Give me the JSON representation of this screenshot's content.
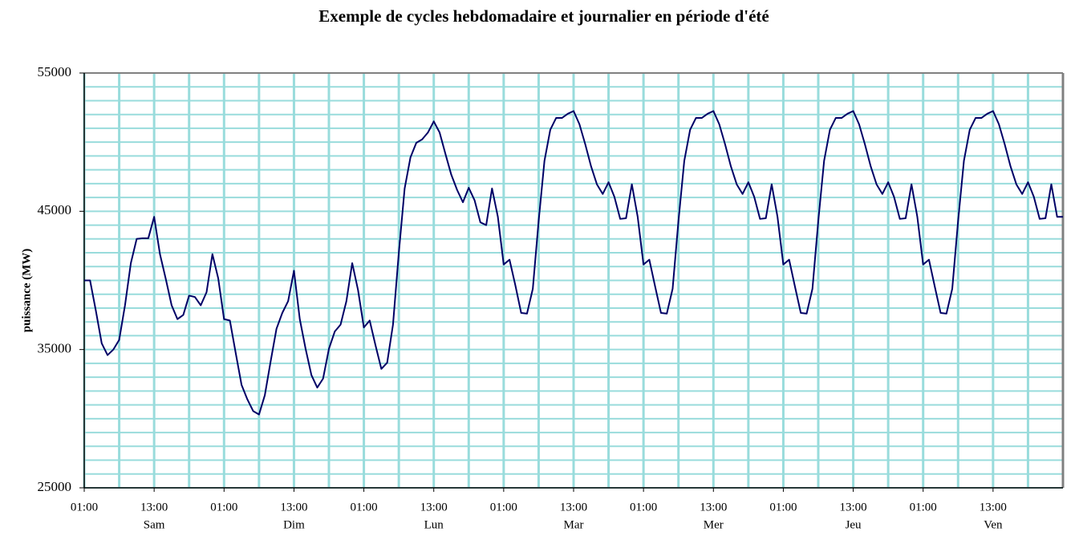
{
  "chart_data": {
    "type": "line",
    "title": "Exemple de cycles hebdomadaire et journalier en période d'été",
    "y_label": "puissance (MW)",
    "color": "#000066",
    "grid_color": "#99dcdc",
    "x": [
      0,
      1,
      2,
      3,
      4,
      5,
      6,
      7,
      8,
      9,
      10,
      11,
      12,
      13,
      14,
      15,
      16,
      17,
      18,
      19,
      20,
      21,
      22,
      23,
      24,
      25,
      26,
      27,
      28,
      29,
      30,
      31,
      32,
      33,
      34,
      35,
      36,
      37,
      38,
      39,
      40,
      41,
      42,
      43,
      44,
      45,
      46,
      47,
      48,
      49,
      50,
      51,
      52,
      53,
      54,
      55,
      56,
      57,
      58,
      59,
      60,
      61,
      62,
      63,
      64,
      65,
      66,
      67,
      68,
      69,
      70,
      71,
      72,
      73,
      74,
      75,
      76,
      77,
      78,
      79,
      80,
      81,
      82,
      83,
      84,
      85,
      86,
      87,
      88,
      89,
      90,
      91,
      92,
      93,
      94,
      95,
      96,
      97,
      98,
      99,
      100,
      101,
      102,
      103,
      104,
      105,
      106,
      107,
      108,
      109,
      110,
      111,
      112,
      113,
      114,
      115,
      116,
      117,
      118,
      119,
      120,
      121,
      122,
      123,
      124,
      125,
      126,
      127,
      128,
      129,
      130,
      131,
      132,
      133,
      134,
      135,
      136,
      137,
      138,
      139,
      140,
      141,
      142,
      143,
      144,
      145,
      146,
      147,
      148,
      149,
      150,
      151,
      152,
      153,
      154,
      155,
      156,
      157,
      158,
      159,
      160,
      161,
      162,
      163,
      164,
      165,
      166,
      167,
      168
    ],
    "values": [
      40000,
      40000,
      37800,
      35450,
      34600,
      35000,
      35700,
      38200,
      41250,
      43000,
      43050,
      43050,
      44600,
      41900,
      40100,
      38200,
      37200,
      37500,
      38900,
      38800,
      38200,
      39150,
      41900,
      40150,
      37200,
      37100,
      34750,
      32450,
      31400,
      30550,
      30300,
      31700,
      34150,
      36500,
      37650,
      38500,
      40700,
      37200,
      35050,
      33150,
      32250,
      32900,
      35050,
      36300,
      36800,
      38500,
      41250,
      39300,
      36600,
      37100,
      35300,
      33600,
      34050,
      36800,
      42000,
      46650,
      48900,
      49950,
      50200,
      50700,
      51500,
      50700,
      49150,
      47650,
      46550,
      45650,
      46700,
      45800,
      44200,
      44000,
      46650,
      44600,
      41150,
      41500,
      39650,
      37650,
      37600,
      39400,
      44300,
      48650,
      50900,
      51750,
      51750,
      52050,
      52250,
      51300,
      49850,
      48250,
      46950,
      46250,
      47100,
      46050,
      44450,
      44500,
      46950,
      44600,
      41150,
      41500,
      39550,
      37650,
      37600,
      39400,
      44300,
      48650,
      50900,
      51750,
      51750,
      52050,
      52250,
      51300,
      49850,
      48250,
      46950,
      46250,
      47100,
      46050,
      44450,
      44500,
      46950,
      44600,
      41150,
      41500,
      39550,
      37650,
      37600,
      39400,
      44300,
      48650,
      50900,
      51750,
      51750,
      52050,
      52250,
      51300,
      49850,
      48250,
      46950,
      46250,
      47100,
      46050,
      44450,
      44500,
      46950,
      44600,
      41150,
      41500,
      39550,
      37650,
      37600,
      39400,
      44300,
      48650,
      50900,
      51750,
      51750,
      52050,
      52250,
      51300,
      49850,
      48250,
      46950,
      46250,
      47100,
      46050,
      44450,
      44500,
      46950,
      44600,
      44600
    ],
    "xlim": [
      0,
      168
    ],
    "ylim": [
      25000,
      55000
    ],
    "yticks": [
      25000,
      35000,
      45000,
      55000
    ],
    "ygrid": [
      25000,
      26000,
      27000,
      28000,
      29000,
      30000,
      31000,
      32000,
      33000,
      34000,
      35000,
      36000,
      37000,
      38000,
      39000,
      40000,
      41000,
      42000,
      43000,
      44000,
      45000,
      46000,
      47000,
      48000,
      49000,
      50000,
      51000,
      52000,
      53000,
      54000,
      55000
    ],
    "xgrid": [
      0,
      6,
      12,
      18,
      24,
      30,
      36,
      42,
      48,
      54,
      60,
      66,
      72,
      78,
      84,
      90,
      96,
      102,
      108,
      114,
      120,
      126,
      132,
      138,
      144,
      150,
      156,
      162,
      168
    ],
    "xticks": [
      {
        "value": 0,
        "label": "01:00"
      },
      {
        "value": 12,
        "label": "13:00"
      },
      {
        "value": 24,
        "label": "01:00"
      },
      {
        "value": 36,
        "label": "13:00"
      },
      {
        "value": 48,
        "label": "01:00"
      },
      {
        "value": 60,
        "label": "13:00"
      },
      {
        "value": 72,
        "label": "01:00"
      },
      {
        "value": 84,
        "label": "13:00"
      },
      {
        "value": 96,
        "label": "01:00"
      },
      {
        "value": 108,
        "label": "13:00"
      },
      {
        "value": 120,
        "label": "01:00"
      },
      {
        "value": 132,
        "label": "13:00"
      },
      {
        "value": 144,
        "label": "01:00"
      },
      {
        "value": 156,
        "label": "13:00"
      }
    ],
    "day_labels": [
      {
        "value": 12,
        "label": "Sam"
      },
      {
        "value": 36,
        "label": "Dim"
      },
      {
        "value": 60,
        "label": "Lun"
      },
      {
        "value": 84,
        "label": "Mar"
      },
      {
        "value": 108,
        "label": "Mer"
      },
      {
        "value": 132,
        "label": "Jeu"
      },
      {
        "value": 156,
        "label": "Ven"
      }
    ],
    "grid": true
  }
}
